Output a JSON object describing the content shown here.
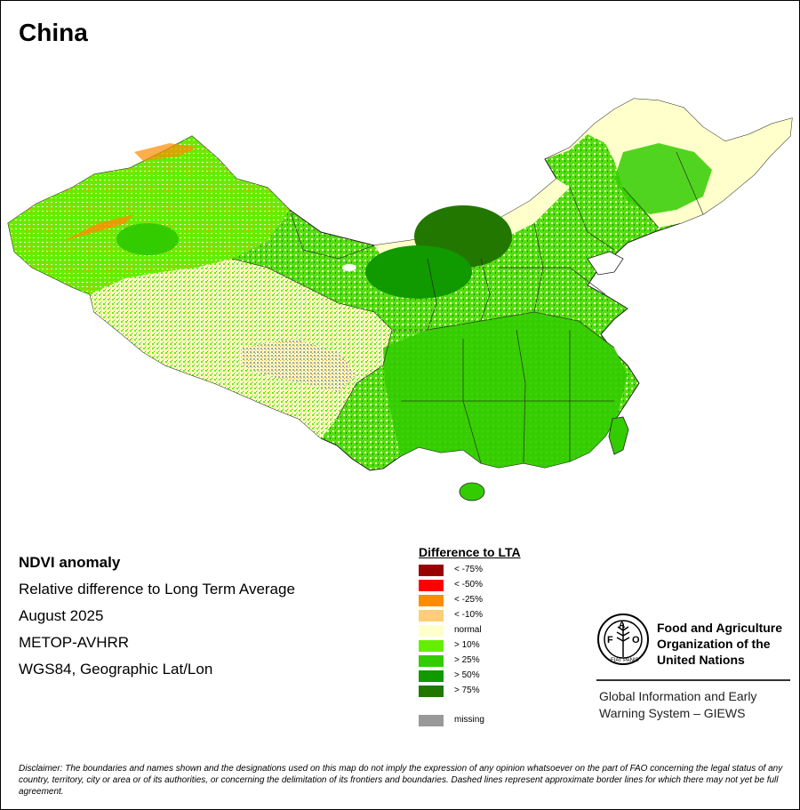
{
  "map": {
    "title": "China",
    "info": {
      "heading": "NDVI anomaly",
      "subtitle": "Relative difference to Long Term Average",
      "date": "August 2025",
      "sensor": "METOP-AVHRR",
      "projection": "WGS84, Geographic Lat/Lon"
    },
    "legend": {
      "title": "Difference to LTA",
      "items": [
        {
          "label": "< -75%",
          "color": "#990000"
        },
        {
          "label": "< -50%",
          "color": "#ff0000"
        },
        {
          "label": "< -25%",
          "color": "#ff8c00"
        },
        {
          "label": "< -10%",
          "color": "#ffcc77"
        },
        {
          "label": "normal",
          "color": "#ffffcc"
        },
        {
          "label": "> 10%",
          "color": "#66ee00"
        },
        {
          "label": "> 25%",
          "color": "#33cc00"
        },
        {
          "label": "> 50%",
          "color": "#119900"
        },
        {
          "label": "> 75%",
          "color": "#227700"
        }
      ],
      "missing": {
        "label": "missing",
        "color": "#999999"
      }
    },
    "colors": {
      "sea": "#ffffff",
      "border": "#222222"
    }
  },
  "fao": {
    "org_line1": "Food and Agriculture",
    "org_line2": "Organization of the",
    "org_line3": "United Nations",
    "giews_line1": "Global Information and Early",
    "giews_line2": "Warning System – GIEWS",
    "logo_letters": "FAO",
    "logo_motto": "FIAT PANIS"
  },
  "disclaimer": "Disclaimer: The boundaries and names shown and the designations used on this map do not imply the expression of any opinion whatsoever on the part of FAO concerning the legal status of any country, territory, city or area or of its authorities, or concerning the delimitation of its frontiers and boundaries. Dashed lines represent approximate border lines for which there may not yet be full agreement."
}
